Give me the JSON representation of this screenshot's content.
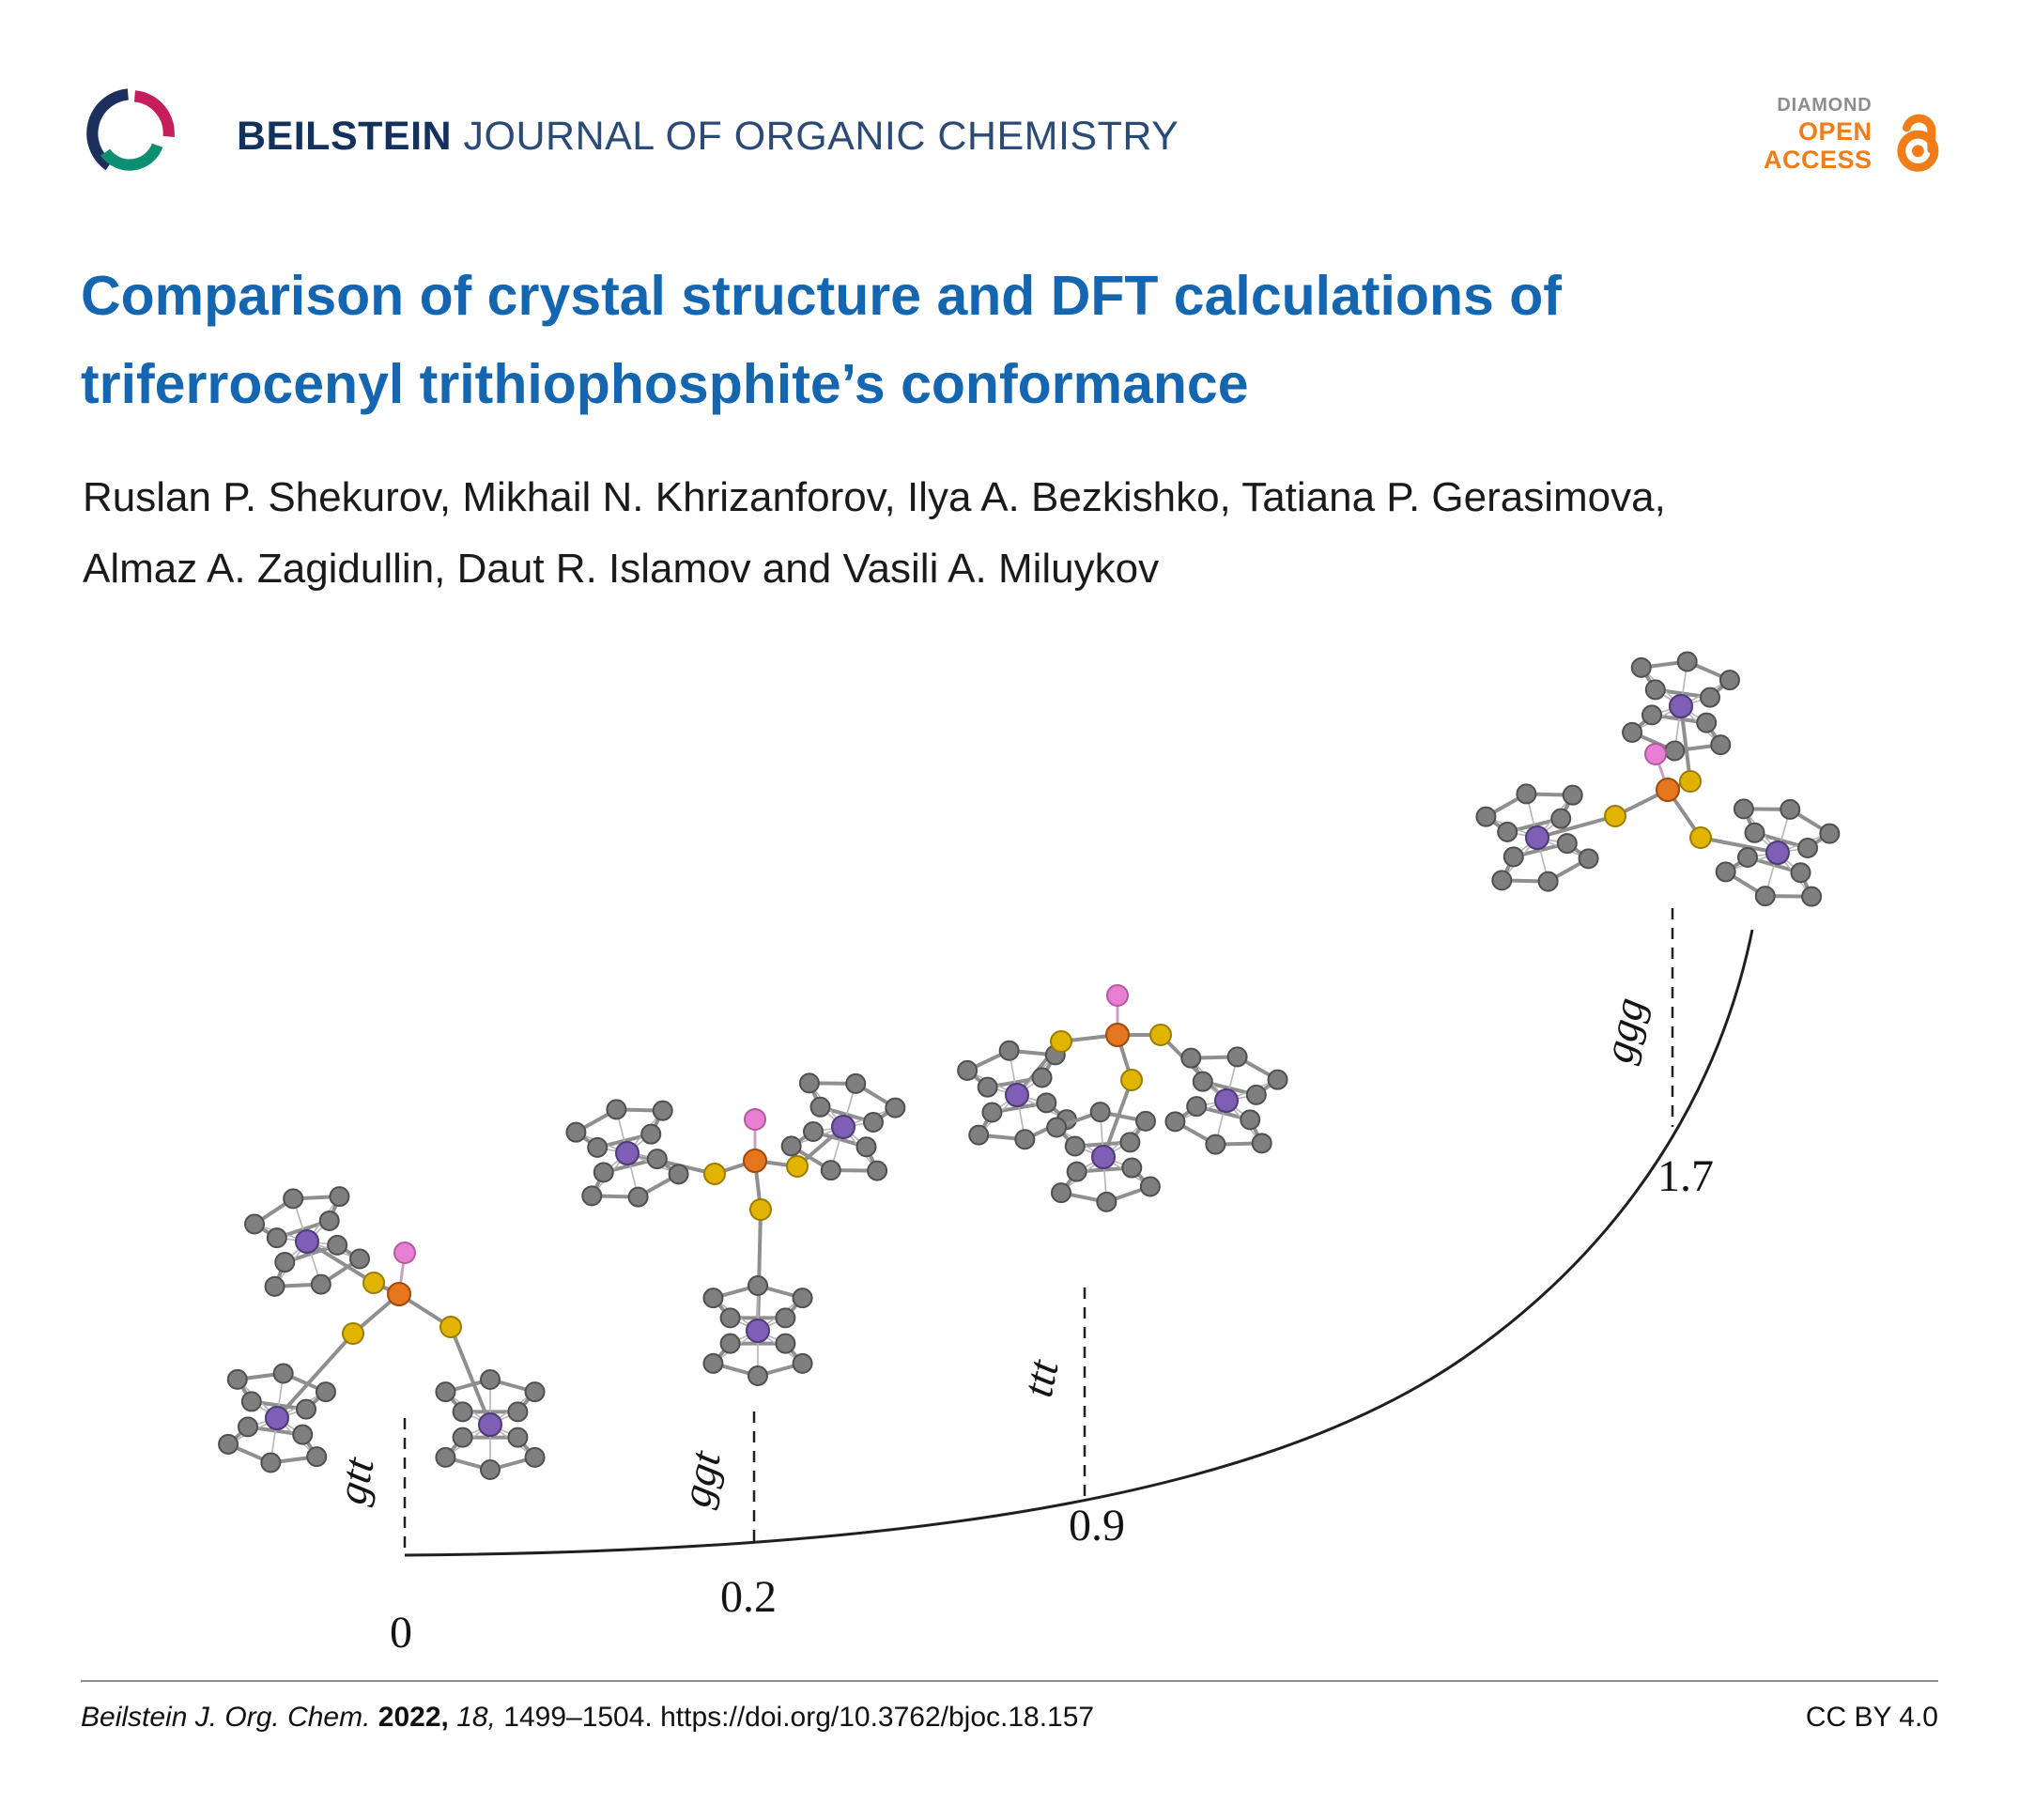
{
  "header": {
    "journal_name_bold": "BEILSTEIN",
    "journal_name_rest": " JOURNAL OF ORGANIC CHEMISTRY",
    "open_access_badge": {
      "diamond": "DIAMOND",
      "open": "OPEN",
      "access": "ACCESS"
    }
  },
  "article": {
    "title_line1": "Comparison of crystal structure and DFT calculations of",
    "title_line2": "triferrocenyl trithiophosphite’s conformance",
    "authors_line1": "Ruslan P. Shekurov, Mikhail N. Khrizanforov, Ilya A. Bezkishko, Tatiana P. Gerasimova,",
    "authors_line2": "Almaz A. Zagidullin, Daut R. Islamov and Vasili A. Miluykov"
  },
  "figure": {
    "conformers": [
      {
        "label": "gtt",
        "energy": "0"
      },
      {
        "label": "ggt",
        "energy": "0.2"
      },
      {
        "label": "ttt",
        "energy": "0.9"
      },
      {
        "label": "ggg",
        "energy": "1.7"
      }
    ]
  },
  "chart_data": {
    "type": "line",
    "categories": [
      "gtt",
      "ggt",
      "ttt",
      "ggg"
    ],
    "values": [
      0,
      0.2,
      0.9,
      1.7
    ],
    "title": "",
    "annotations": [
      "gtt",
      "ggt",
      "ttt",
      "ggg",
      "0",
      "0.2",
      "0.9",
      "1.7"
    ]
  },
  "footer": {
    "citation_journal": "Beilstein J. Org. Chem.",
    "citation_year": "2022,",
    "citation_volume": "18,",
    "citation_pages": "1499–1504.",
    "citation_doi": "https://doi.org/10.3762/bjoc.18.157",
    "license": "CC BY 4.0"
  },
  "colors": {
    "title_blue": "#1566b0",
    "journal_navy": "#14305c",
    "open_access_orange": "#ef7d1a",
    "badge_gray": "#8d8d8d",
    "atom_carbon": "#7f7f7f",
    "atom_iron": "#7e5fb5",
    "atom_sulfur": "#e0b400",
    "atom_phosphorus": "#e5761e",
    "atom_lone_pair": "#e87fd4"
  }
}
